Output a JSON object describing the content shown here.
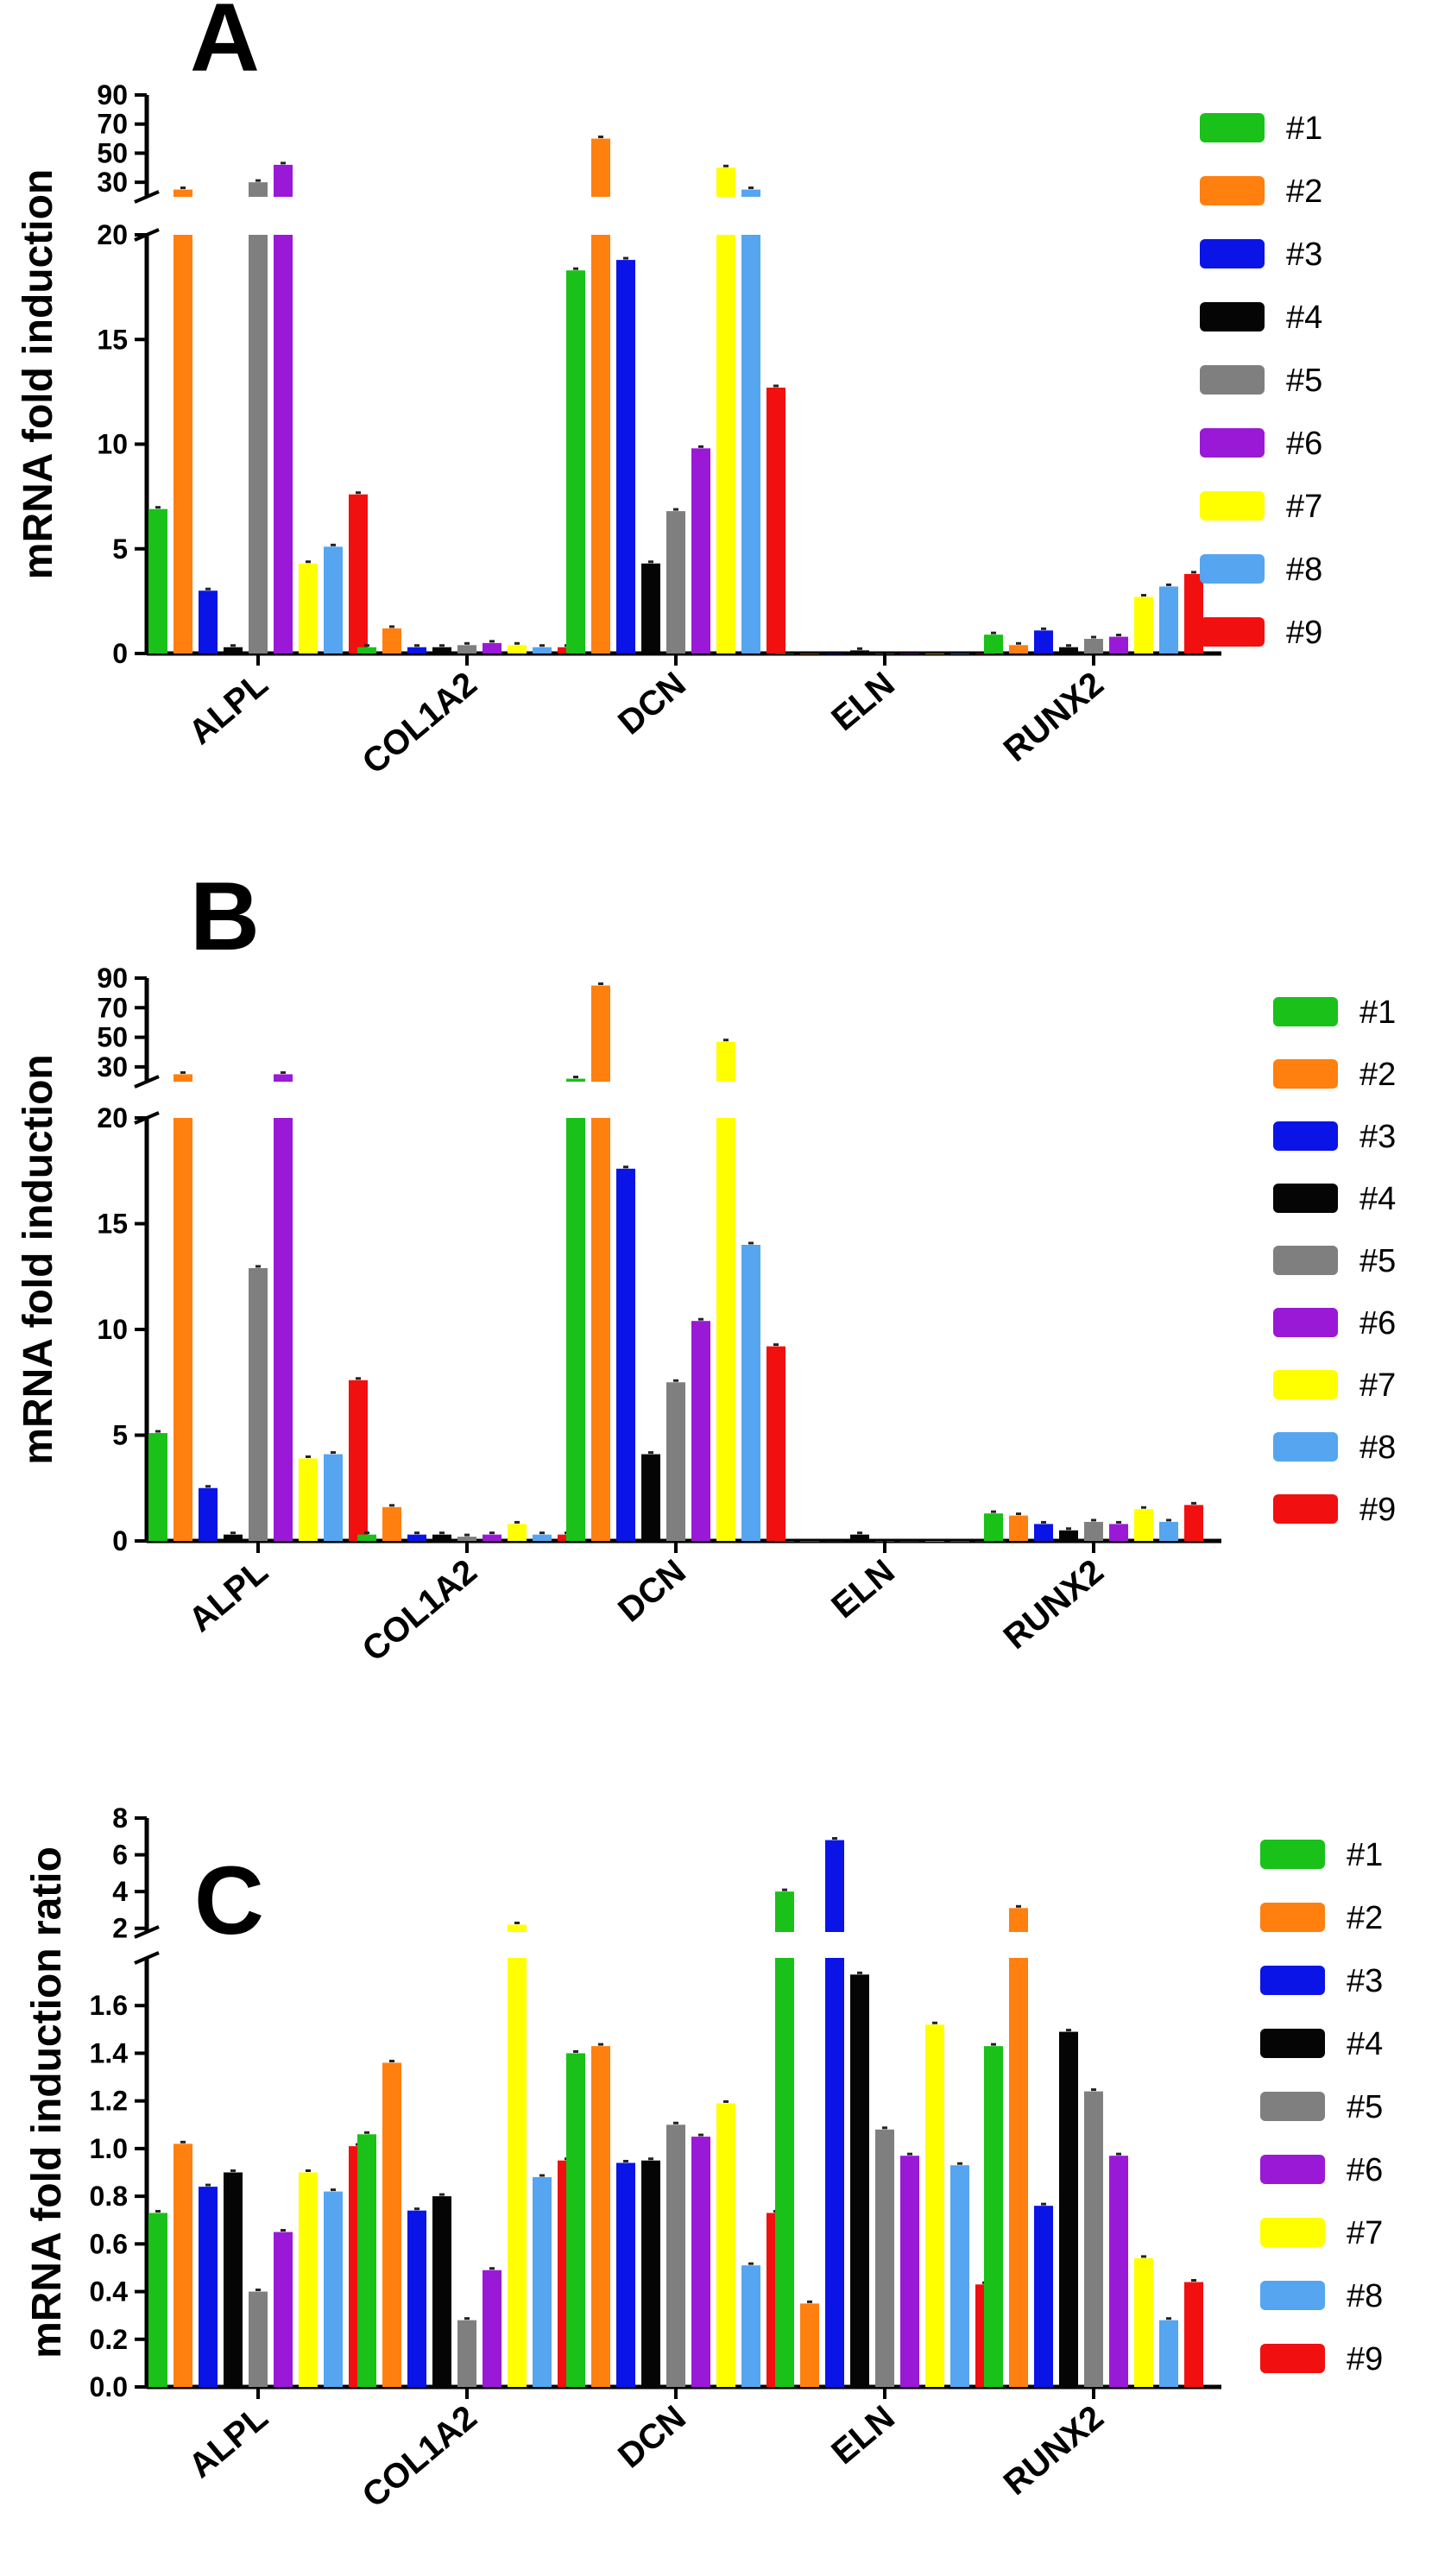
{
  "chart_data": [
    {
      "panel": "A",
      "type": "bar",
      "ylabel": "mRNA fold induction",
      "categories": [
        "ALPL",
        "COL1A2",
        "DCN",
        "ELN",
        "RUNX2"
      ],
      "lower_range": [
        0,
        20
      ],
      "lower_ticks": [
        0,
        5,
        10,
        15,
        20
      ],
      "upper_range": [
        20,
        90
      ],
      "upper_ticks": [
        30,
        50,
        70,
        90
      ],
      "series": [
        {
          "name": "#1",
          "color": "#19c119",
          "values": [
            6.9,
            0.3,
            18.3,
            0.0,
            0.9
          ]
        },
        {
          "name": "#2",
          "color": "#ff7f0f",
          "values": [
            25,
            1.2,
            60,
            0.0,
            0.4
          ]
        },
        {
          "name": "#3",
          "color": "#0a14e6",
          "values": [
            3.0,
            0.3,
            18.8,
            0.0,
            1.1
          ]
        },
        {
          "name": "#4",
          "color": "#050505",
          "values": [
            0.3,
            0.3,
            4.3,
            0.15,
            0.3
          ]
        },
        {
          "name": "#5",
          "color": "#7f7f7f",
          "values": [
            30,
            0.4,
            6.8,
            0.0,
            0.7
          ]
        },
        {
          "name": "#6",
          "color": "#9a19d6",
          "values": [
            42,
            0.5,
            9.8,
            0.0,
            0.8
          ]
        },
        {
          "name": "#7",
          "color": "#ffff00",
          "values": [
            4.3,
            0.4,
            40,
            0.0,
            2.7
          ]
        },
        {
          "name": "#8",
          "color": "#55a5f0",
          "values": [
            5.1,
            0.3,
            25,
            0.0,
            3.2
          ]
        },
        {
          "name": "#9",
          "color": "#f20f0f",
          "values": [
            7.6,
            0.3,
            12.7,
            0.0,
            3.8
          ]
        }
      ]
    },
    {
      "panel": "B",
      "type": "bar",
      "ylabel": "mRNA fold induction",
      "categories": [
        "ALPL",
        "COL1A2",
        "DCN",
        "ELN",
        "RUNX2"
      ],
      "lower_range": [
        0,
        20
      ],
      "lower_ticks": [
        0,
        5,
        10,
        15,
        20
      ],
      "upper_range": [
        20,
        90
      ],
      "upper_ticks": [
        30,
        50,
        70,
        90
      ],
      "series": [
        {
          "name": "#1",
          "color": "#19c119",
          "values": [
            5.1,
            0.3,
            22,
            0.0,
            1.3
          ]
        },
        {
          "name": "#2",
          "color": "#ff7f0f",
          "values": [
            25,
            1.6,
            85,
            0.0,
            1.2
          ]
        },
        {
          "name": "#3",
          "color": "#0a14e6",
          "values": [
            2.5,
            0.3,
            17.6,
            0.0,
            0.8
          ]
        },
        {
          "name": "#4",
          "color": "#050505",
          "values": [
            0.3,
            0.3,
            4.1,
            0.3,
            0.5
          ]
        },
        {
          "name": "#5",
          "color": "#7f7f7f",
          "values": [
            12.9,
            0.2,
            7.5,
            0.0,
            0.9
          ]
        },
        {
          "name": "#6",
          "color": "#9a19d6",
          "values": [
            25,
            0.3,
            10.4,
            0.0,
            0.8
          ]
        },
        {
          "name": "#7",
          "color": "#ffff00",
          "values": [
            3.9,
            0.8,
            47,
            0.0,
            1.5
          ]
        },
        {
          "name": "#8",
          "color": "#55a5f0",
          "values": [
            4.1,
            0.3,
            14.0,
            0.0,
            0.9
          ]
        },
        {
          "name": "#9",
          "color": "#f20f0f",
          "values": [
            7.6,
            0.3,
            9.2,
            0.0,
            1.7
          ]
        }
      ]
    },
    {
      "panel": "C",
      "type": "bar",
      "ylabel": "mRNA fold induction ratio",
      "categories": [
        "ALPL",
        "COL1A2",
        "DCN",
        "ELN",
        "RUNX2"
      ],
      "lower_range": [
        0,
        1.8
      ],
      "lower_ticks": [
        0.0,
        0.2,
        0.4,
        0.6,
        0.8,
        1.0,
        1.2,
        1.4,
        1.6
      ],
      "upper_range": [
        1.8,
        8
      ],
      "upper_ticks": [
        2,
        4,
        6,
        8
      ],
      "series": [
        {
          "name": "#1",
          "color": "#19c119",
          "values": [
            0.73,
            1.06,
            1.4,
            4.0,
            1.43
          ]
        },
        {
          "name": "#2",
          "color": "#ff7f0f",
          "values": [
            1.02,
            1.36,
            1.43,
            0.35,
            3.1
          ]
        },
        {
          "name": "#3",
          "color": "#0a14e6",
          "values": [
            0.84,
            0.74,
            0.94,
            6.8,
            0.76
          ]
        },
        {
          "name": "#4",
          "color": "#050505",
          "values": [
            0.9,
            0.8,
            0.95,
            1.73,
            1.49
          ]
        },
        {
          "name": "#5",
          "color": "#7f7f7f",
          "values": [
            0.4,
            0.28,
            1.1,
            1.08,
            1.24
          ]
        },
        {
          "name": "#6",
          "color": "#9a19d6",
          "values": [
            0.65,
            0.49,
            1.05,
            0.97,
            0.97
          ]
        },
        {
          "name": "#7",
          "color": "#ffff00",
          "values": [
            0.9,
            2.2,
            1.19,
            1.52,
            0.54
          ]
        },
        {
          "name": "#8",
          "color": "#55a5f0",
          "values": [
            0.82,
            0.88,
            0.51,
            0.93,
            0.28
          ]
        },
        {
          "name": "#9",
          "color": "#f20f0f",
          "values": [
            1.01,
            0.95,
            0.73,
            0.43,
            0.44
          ]
        }
      ]
    }
  ]
}
